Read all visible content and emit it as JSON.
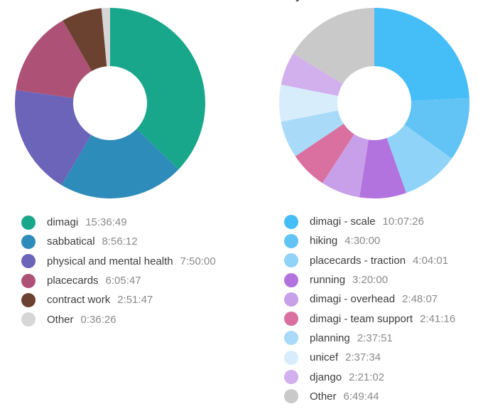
{
  "page": {
    "background": "#ffffff",
    "clipped_title_fragment": "y"
  },
  "legend": {
    "label_color": "#3d3d3d",
    "value_color": "#8a8a8a"
  },
  "chart_data": [
    {
      "type": "pie",
      "subtype": "donut",
      "title": "",
      "direction": "clockwise",
      "start_angle_deg": 0,
      "inner_radius_ratio": 0.39,
      "legend_position": "bottom-left",
      "categories": [
        "dimagi",
        "sabbatical",
        "physical and mental health",
        "placecards",
        "contract work",
        "Other"
      ],
      "values_hms": [
        "15:36:49",
        "8:56:12",
        "7:50:00",
        "6:05:47",
        "2:51:47",
        "0:36:26"
      ],
      "values_seconds": [
        56209,
        32172,
        28200,
        21947,
        10307,
        2186
      ],
      "colors": [
        "#19a78b",
        "#2e8cba",
        "#6b64b8",
        "#ad5276",
        "#6a422f",
        "#d6d6d6"
      ]
    },
    {
      "type": "pie",
      "subtype": "donut",
      "title": "",
      "direction": "clockwise",
      "start_angle_deg": 0,
      "inner_radius_ratio": 0.39,
      "legend_position": "bottom-left",
      "categories": [
        "dimagi - scale",
        "hiking",
        "placecards - traction",
        "running",
        "dimagi - overhead",
        "dimagi - team support",
        "planning",
        "unicef",
        "django",
        "Other"
      ],
      "values_hms": [
        "10:07:26",
        "4:30:00",
        "4:04:01",
        "3:20:00",
        "2:48:07",
        "2:41:16",
        "2:37:51",
        "2:37:34",
        "2:21:02",
        "6:49:44"
      ],
      "values_seconds": [
        36446,
        16200,
        14641,
        12000,
        10087,
        9676,
        9471,
        9454,
        8462,
        24584
      ],
      "colors": [
        "#45bdf7",
        "#62c3f5",
        "#90d3f8",
        "#b273df",
        "#c89fe9",
        "#d9709f",
        "#a9dbf8",
        "#d8edfb",
        "#d2b0ee",
        "#c9c9c9"
      ]
    }
  ]
}
